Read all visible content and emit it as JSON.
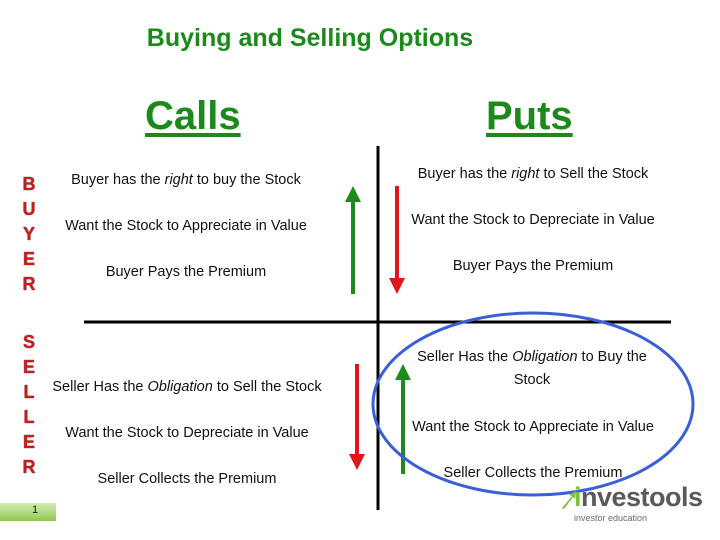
{
  "slide": {
    "title": "Buying and Selling Options",
    "page_number": "1"
  },
  "columns": {
    "calls": "Calls",
    "puts": "Puts"
  },
  "side_labels": {
    "buyer": [
      "B",
      "U",
      "Y",
      "E",
      "R"
    ],
    "seller": [
      "S",
      "E",
      "L",
      "L",
      "E",
      "R"
    ]
  },
  "quadrants": {
    "buyer_calls": {
      "line1": {
        "pre": "Buyer has the ",
        "em": "right",
        "post": " to buy the Stock"
      },
      "line2": "Want the Stock to Appreciate in Value",
      "line3": "Buyer Pays the Premium"
    },
    "buyer_puts": {
      "line1": {
        "pre": "Buyer has the ",
        "em": "right",
        "post": " to Sell the Stock"
      },
      "line2": "Want the Stock to Depreciate in Value",
      "line3": "Buyer Pays the Premium"
    },
    "seller_calls": {
      "line1": {
        "pre": "Seller Has the ",
        "em": "Obligation",
        "post": " to Sell the Stock"
      },
      "line2": "Want the Stock to Depreciate in Value",
      "line3": "Seller Collects the Premium"
    },
    "seller_puts": {
      "line1": {
        "pre": "Seller Has the ",
        "em": "Obligation",
        "post": " to Buy the Stock"
      },
      "line2": "Want the Stock to Appreciate in Value",
      "line3": "Seller Collects the Premium"
    }
  },
  "logo": {
    "prefix": "i",
    "name": "nvestools",
    "tagline": "investor education"
  },
  "colors": {
    "green": "#1b8a1b",
    "red": "#c81c1c",
    "arrow_red": "#e01515",
    "arrow_green": "#1e8a1e",
    "circle_blue": "#3a5fd6"
  }
}
